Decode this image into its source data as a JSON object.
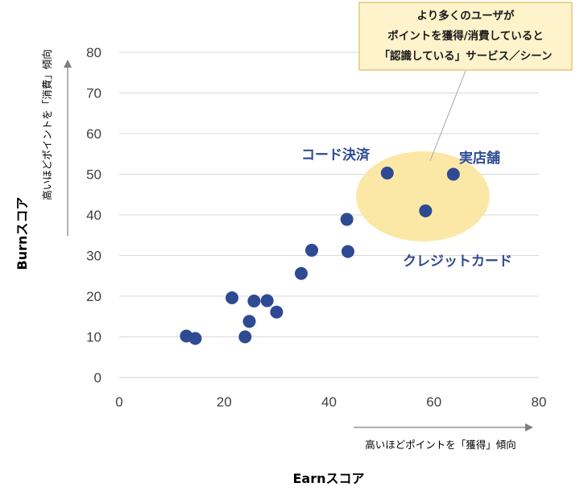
{
  "chart_data": {
    "type": "scatter",
    "xlabel": "Earnスコア",
    "ylabel": "Burnスコア",
    "xlim": [
      0,
      80
    ],
    "ylim": [
      0,
      80
    ],
    "x_ticks": [
      0,
      20,
      40,
      60,
      80
    ],
    "y_ticks": [
      0,
      10,
      20,
      30,
      40,
      50,
      60,
      70,
      80
    ],
    "grid": "horizontal",
    "x_note": "高いほどポイントを「獲得」傾向",
    "y_note": "高いほどポイントを「消費」傾向",
    "colors": {
      "point": "#2E4A93",
      "highlight": "#FCE7A1",
      "grid": "#D9D9D9"
    },
    "points": [
      {
        "x": 12.8,
        "y": 10.2
      },
      {
        "x": 14.5,
        "y": 9.6
      },
      {
        "x": 21.5,
        "y": 19.6
      },
      {
        "x": 24.0,
        "y": 10.0
      },
      {
        "x": 24.8,
        "y": 13.8
      },
      {
        "x": 25.7,
        "y": 18.8
      },
      {
        "x": 28.2,
        "y": 18.9
      },
      {
        "x": 30.0,
        "y": 16.1
      },
      {
        "x": 34.7,
        "y": 25.6
      },
      {
        "x": 36.7,
        "y": 31.3
      },
      {
        "x": 43.4,
        "y": 38.9
      },
      {
        "x": 43.6,
        "y": 31.0
      },
      {
        "x": 51.1,
        "y": 50.3
      },
      {
        "x": 58.4,
        "y": 41.0
      },
      {
        "x": 63.7,
        "y": 50.0
      }
    ],
    "annotations": [
      {
        "text": "コード決済"
      },
      {
        "text": "実店舗"
      },
      {
        "text": "クレジットカード"
      }
    ],
    "callout": {
      "lines": [
        "より多くのユーザが",
        "ポイントを獲得/消費していると",
        "「認識している」サービス／シーン"
      ]
    }
  }
}
